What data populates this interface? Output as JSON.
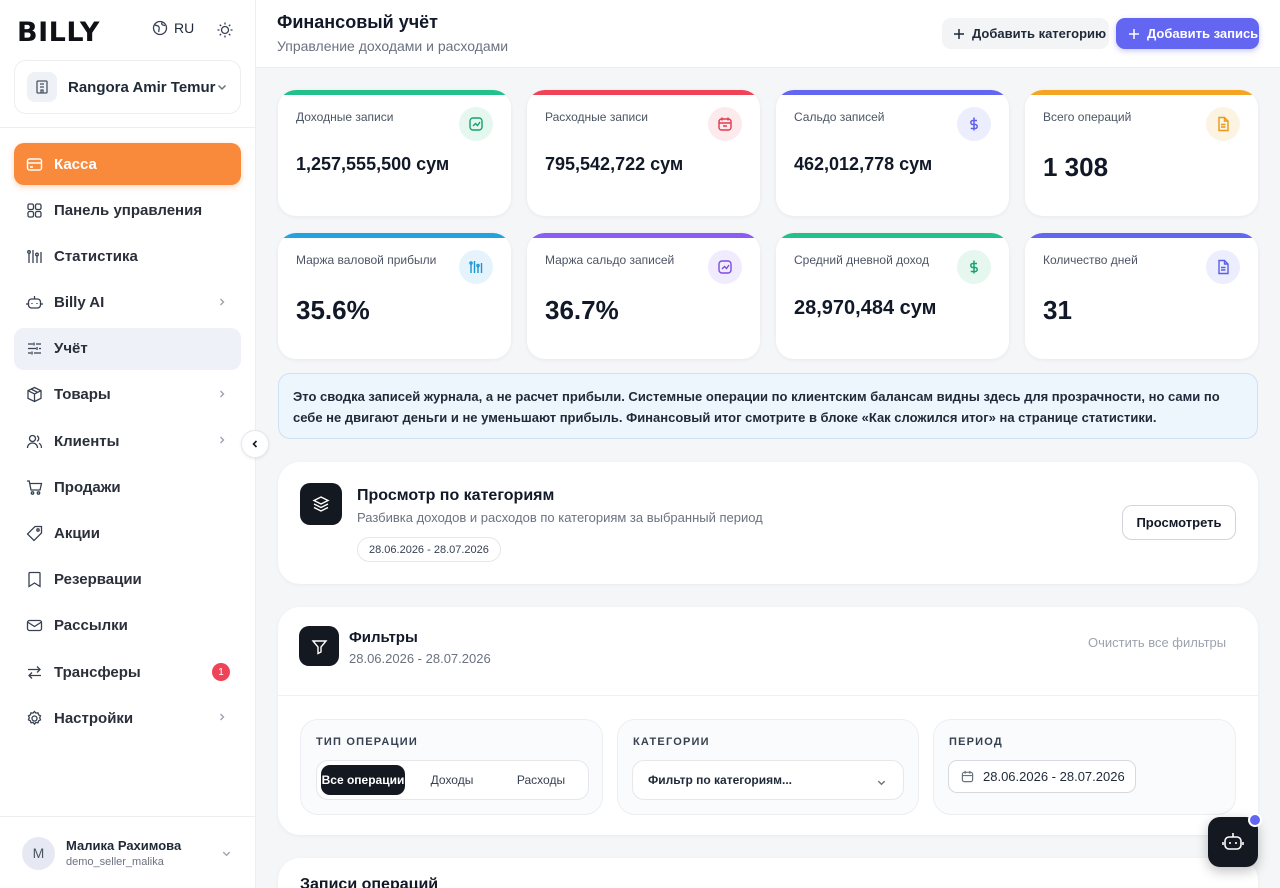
{
  "app": {
    "logo": "BILLY",
    "language": "RU"
  },
  "store": {
    "name": "Rangora Amir Temur"
  },
  "nav": [
    {
      "label": "Касса",
      "icon": "cash-register-icon"
    },
    {
      "label": "Панель управления",
      "icon": "dashboard-icon"
    },
    {
      "label": "Статистика",
      "icon": "statistics-icon"
    },
    {
      "label": "Billy AI",
      "icon": "robot-icon"
    },
    {
      "label": "Учёт",
      "icon": "accounting-icon"
    },
    {
      "label": "Товары",
      "icon": "box-icon"
    },
    {
      "label": "Клиенты",
      "icon": "users-icon"
    },
    {
      "label": "Продажи",
      "icon": "cart-icon"
    },
    {
      "label": "Акции",
      "icon": "tag-icon"
    },
    {
      "label": "Резервации",
      "icon": "bookmark-icon"
    },
    {
      "label": "Рассылки",
      "icon": "mail-icon"
    },
    {
      "label": "Трансферы",
      "icon": "transfer-icon",
      "badge": "1"
    },
    {
      "label": "Настройки",
      "icon": "gear-icon"
    }
  ],
  "user": {
    "initial": "M",
    "name": "Малика Рахимова",
    "login": "demo_seller_malika"
  },
  "header": {
    "title": "Финансовый учёт",
    "subtitle": "Управление доходами и расходами",
    "add_category": "Добавить категорию",
    "add_record": "Добавить запись"
  },
  "stats": [
    {
      "label": "Доходные записи",
      "value": "1,257,555,500 сум",
      "accent": "#22c08a",
      "icon": "trend-up-icon"
    },
    {
      "label": "Расходные записи",
      "value": "795,542,722 сум",
      "accent": "#ef4458",
      "icon": "calendar-icon"
    },
    {
      "label": "Сальдо записей",
      "value": "462,012,778 сум",
      "accent": "#6366f1",
      "icon": "dollar-icon"
    },
    {
      "label": "Всего операций",
      "value": "1 308",
      "accent": "#f5a524",
      "icon": "document-icon"
    },
    {
      "label": "Маржа валовой прибыли",
      "value": "35.6%",
      "accent": "#22a3e0",
      "icon": "bar-chart-icon"
    },
    {
      "label": "Маржа сальдо записей",
      "value": "36.7%",
      "accent": "#8b5cf6",
      "icon": "chart-box-icon"
    },
    {
      "label": "Средний дневной доход",
      "value": "28,970,484 сум",
      "accent": "#22c08a",
      "icon": "dollar-icon"
    },
    {
      "label": "Количество дней",
      "value": "31",
      "accent": "#6366f1",
      "icon": "document-icon"
    }
  ],
  "notice": "Это сводка записей журнала, а не расчет прибыли. Системные операции по клиентским балансам видны здесь для прозрачности, но сами по себе не двигают деньги и не уменьшают прибыль. Финансовый итог смотрите в блоке «Как сложился итог» на странице статистики.",
  "categories_panel": {
    "title": "Просмотр по категориям",
    "subtitle": "Разбивка доходов и расходов по категориям за выбранный период",
    "period": "28.06.2026 - 28.07.2026",
    "button": "Просмотреть"
  },
  "filters": {
    "title": "Фильтры",
    "period": "28.06.2026 - 28.07.2026",
    "clear": "Очистить все фильтры",
    "type_caption": "ТИП ОПЕРАЦИИ",
    "type_options": [
      "Все операции",
      "Доходы",
      "Расходы"
    ],
    "category_caption": "КАТЕГОРИИ",
    "category_placeholder": "Фильтр по категориям...",
    "period_caption": "ПЕРИОД",
    "period_value": "28.06.2026 - 28.07.2026"
  },
  "records": {
    "title": "Записи операций"
  }
}
